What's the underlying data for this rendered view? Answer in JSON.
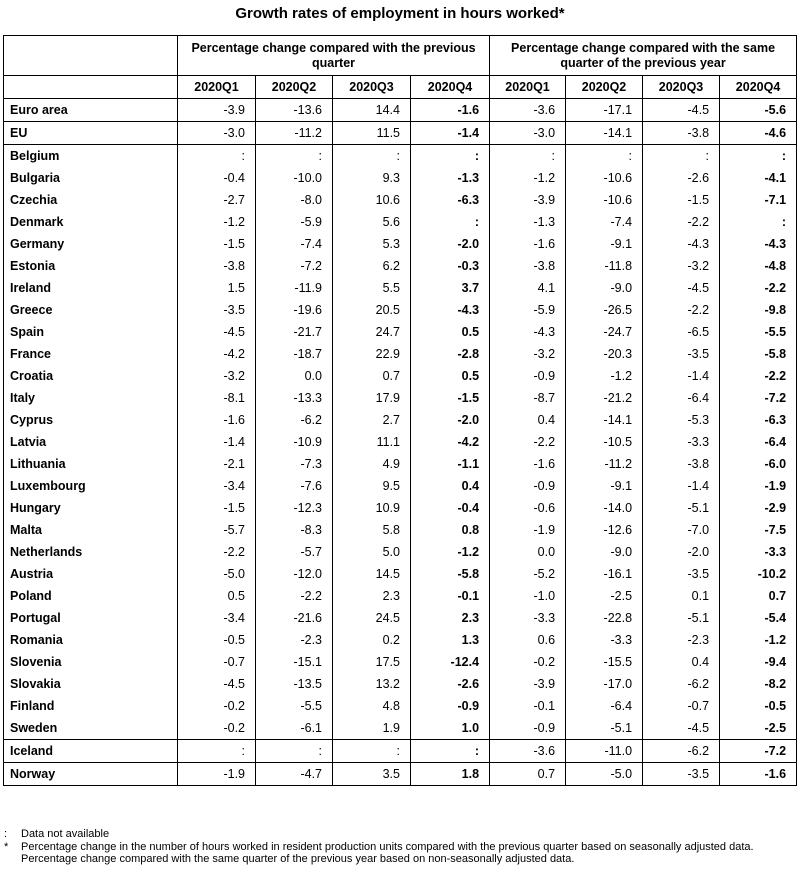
{
  "title": "Growth rates of employment in hours worked*",
  "groups": [
    "Percentage change compared with the previous quarter",
    "Percentage change compared with the same quarter of the previous year"
  ],
  "quarters": [
    "2020Q1",
    "2020Q2",
    "2020Q3",
    "2020Q4",
    "2020Q1",
    "2020Q2",
    "2020Q3",
    "2020Q4"
  ],
  "rows": [
    {
      "name": "Euro area",
      "v": [
        "-3.9",
        "-13.6",
        "14.4",
        "-1.6",
        "-3.6",
        "-17.1",
        "-4.5",
        "-5.6"
      ]
    },
    {
      "name": "EU",
      "v": [
        "-3.0",
        "-11.2",
        "11.5",
        "-1.4",
        "-3.0",
        "-14.1",
        "-3.8",
        "-4.6"
      ]
    },
    {
      "name": "Belgium",
      "v": [
        ":",
        ":",
        ":",
        ":",
        ":",
        ":",
        ":",
        ":"
      ]
    },
    {
      "name": "Bulgaria",
      "v": [
        "-0.4",
        "-10.0",
        "9.3",
        "-1.3",
        "-1.2",
        "-10.6",
        "-2.6",
        "-4.1"
      ]
    },
    {
      "name": "Czechia",
      "v": [
        "-2.7",
        "-8.0",
        "10.6",
        "-6.3",
        "-3.9",
        "-10.6",
        "-1.5",
        "-7.1"
      ]
    },
    {
      "name": "Denmark",
      "v": [
        "-1.2",
        "-5.9",
        "5.6",
        ":",
        "-1.3",
        "-7.4",
        "-2.2",
        ":"
      ]
    },
    {
      "name": "Germany",
      "v": [
        "-1.5",
        "-7.4",
        "5.3",
        "-2.0",
        "-1.6",
        "-9.1",
        "-4.3",
        "-4.3"
      ]
    },
    {
      "name": "Estonia",
      "v": [
        "-3.8",
        "-7.2",
        "6.2",
        "-0.3",
        "-3.8",
        "-11.8",
        "-3.2",
        "-4.8"
      ]
    },
    {
      "name": "Ireland",
      "v": [
        "1.5",
        "-11.9",
        "5.5",
        "3.7",
        "4.1",
        "-9.0",
        "-4.5",
        "-2.2"
      ]
    },
    {
      "name": "Greece",
      "v": [
        "-3.5",
        "-19.6",
        "20.5",
        "-4.3",
        "-5.9",
        "-26.5",
        "-2.2",
        "-9.8"
      ]
    },
    {
      "name": "Spain",
      "v": [
        "-4.5",
        "-21.7",
        "24.7",
        "0.5",
        "-4.3",
        "-24.7",
        "-6.5",
        "-5.5"
      ]
    },
    {
      "name": "France",
      "v": [
        "-4.2",
        "-18.7",
        "22.9",
        "-2.8",
        "-3.2",
        "-20.3",
        "-3.5",
        "-5.8"
      ]
    },
    {
      "name": "Croatia",
      "v": [
        "-3.2",
        "0.0",
        "0.7",
        "0.5",
        "-0.9",
        "-1.2",
        "-1.4",
        "-2.2"
      ]
    },
    {
      "name": "Italy",
      "v": [
        "-8.1",
        "-13.3",
        "17.9",
        "-1.5",
        "-8.7",
        "-21.2",
        "-6.4",
        "-7.2"
      ]
    },
    {
      "name": "Cyprus",
      "v": [
        "-1.6",
        "-6.2",
        "2.7",
        "-2.0",
        "0.4",
        "-14.1",
        "-5.3",
        "-6.3"
      ]
    },
    {
      "name": "Latvia",
      "v": [
        "-1.4",
        "-10.9",
        "11.1",
        "-4.2",
        "-2.2",
        "-10.5",
        "-3.3",
        "-6.4"
      ]
    },
    {
      "name": "Lithuania",
      "v": [
        "-2.1",
        "-7.3",
        "4.9",
        "-1.1",
        "-1.6",
        "-11.2",
        "-3.8",
        "-6.0"
      ]
    },
    {
      "name": "Luxembourg",
      "v": [
        "-3.4",
        "-7.6",
        "9.5",
        "0.4",
        "-0.9",
        "-9.1",
        "-1.4",
        "-1.9"
      ]
    },
    {
      "name": "Hungary",
      "v": [
        "-1.5",
        "-12.3",
        "10.9",
        "-0.4",
        "-0.6",
        "-14.0",
        "-5.1",
        "-2.9"
      ]
    },
    {
      "name": "Malta",
      "v": [
        "-5.7",
        "-8.3",
        "5.8",
        "0.8",
        "-1.9",
        "-12.6",
        "-7.0",
        "-7.5"
      ]
    },
    {
      "name": "Netherlands",
      "v": [
        "-2.2",
        "-5.7",
        "5.0",
        "-1.2",
        "0.0",
        "-9.0",
        "-2.0",
        "-3.3"
      ]
    },
    {
      "name": "Austria",
      "v": [
        "-5.0",
        "-12.0",
        "14.5",
        "-5.8",
        "-5.2",
        "-16.1",
        "-3.5",
        "-10.2"
      ]
    },
    {
      "name": "Poland",
      "v": [
        "0.5",
        "-2.2",
        "2.3",
        "-0.1",
        "-1.0",
        "-2.5",
        "0.1",
        "0.7"
      ]
    },
    {
      "name": "Portugal",
      "v": [
        "-3.4",
        "-21.6",
        "24.5",
        "2.3",
        "-3.3",
        "-22.8",
        "-5.1",
        "-5.4"
      ]
    },
    {
      "name": "Romania",
      "v": [
        "-0.5",
        "-2.3",
        "0.2",
        "1.3",
        "0.6",
        "-3.3",
        "-2.3",
        "-1.2"
      ]
    },
    {
      "name": "Slovenia",
      "v": [
        "-0.7",
        "-15.1",
        "17.5",
        "-12.4",
        "-0.2",
        "-15.5",
        "0.4",
        "-9.4"
      ]
    },
    {
      "name": "Slovakia",
      "v": [
        "-4.5",
        "-13.5",
        "13.2",
        "-2.6",
        "-3.9",
        "-17.0",
        "-6.2",
        "-8.2"
      ]
    },
    {
      "name": "Finland",
      "v": [
        "-0.2",
        "-5.5",
        "4.8",
        "-0.9",
        "-0.1",
        "-6.4",
        "-0.7",
        "-0.5"
      ]
    },
    {
      "name": "Sweden",
      "v": [
        "-0.2",
        "-6.1",
        "1.9",
        "1.0",
        "-0.9",
        "-5.1",
        "-4.5",
        "-2.5"
      ]
    },
    {
      "name": "Iceland",
      "v": [
        ":",
        ":",
        ":",
        ":",
        "-3.6",
        "-11.0",
        "-6.2",
        "-7.2"
      ]
    },
    {
      "name": "Norway",
      "v": [
        "-1.9",
        "-4.7",
        "3.5",
        "1.8",
        "0.7",
        "-5.0",
        "-3.5",
        "-1.6"
      ]
    }
  ],
  "notes": [
    {
      "mark": ":",
      "text": "Data not available"
    },
    {
      "mark": "*",
      "text": "Percentage change in the number of hours worked in resident production units compared with the previous quarter based on seasonally adjusted data. Percentage change compared with the same quarter of the previous year based on non-seasonally adjusted data."
    }
  ]
}
